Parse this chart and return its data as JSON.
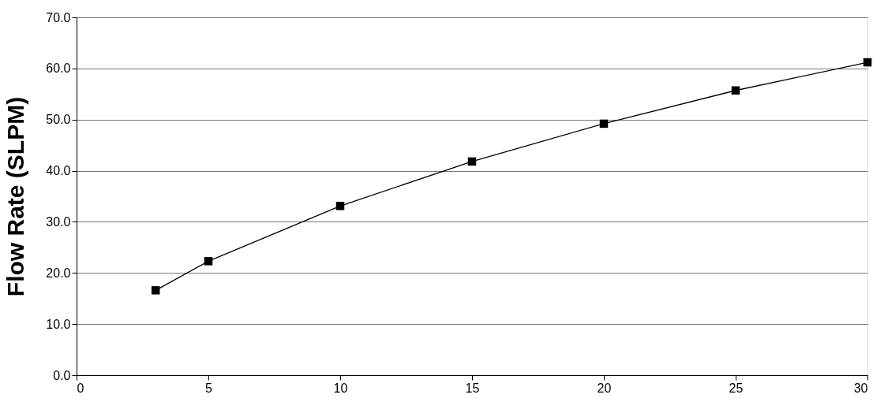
{
  "chart_data": {
    "type": "line",
    "ylabel": "Flow Rate (SLPM)",
    "x": [
      3,
      5,
      10,
      15,
      20,
      25,
      30
    ],
    "series": [
      {
        "color": "#000000",
        "values": [
          16.6,
          22.3,
          33.1,
          41.8,
          49.2,
          55.7,
          61.2
        ]
      }
    ],
    "xlim": [
      0,
      30
    ],
    "xticks": [
      0,
      5,
      10,
      15,
      20,
      25,
      30
    ],
    "ylim": [
      0,
      70
    ],
    "yticks": [
      {
        "value": 0,
        "label": "0.0"
      },
      {
        "value": 10,
        "label": "10.0"
      },
      {
        "value": 20,
        "label": "20.0"
      },
      {
        "value": 30,
        "label": "30.0"
      },
      {
        "value": 40,
        "label": "40.0"
      },
      {
        "value": 50,
        "label": "50.0"
      },
      {
        "value": 60,
        "label": "60.0"
      },
      {
        "value": 70,
        "label": "70.0"
      }
    ],
    "grid": "y",
    "marker": "square",
    "line_style": "solid"
  }
}
